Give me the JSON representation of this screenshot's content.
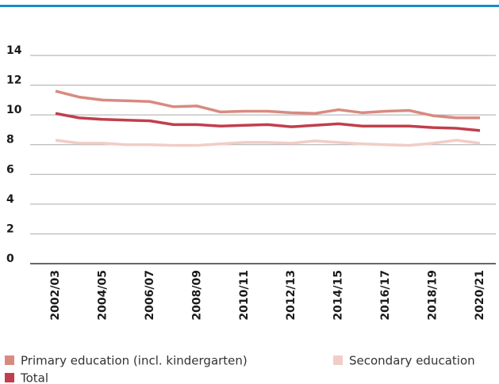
{
  "chart_data": {
    "type": "line",
    "categories": [
      "2002/03",
      null,
      "2004/05",
      null,
      "2006/07",
      null,
      "2008/09",
      null,
      "2010/11",
      null,
      "2012/13",
      null,
      "2014/15",
      null,
      "2016/17",
      null,
      "2018/19",
      null,
      "2020/21"
    ],
    "series": [
      {
        "name": "Primary education (incl. kindergarten)",
        "color": "#d98a80",
        "values": [
          11.6,
          11.2,
          11.0,
          10.95,
          10.9,
          10.55,
          10.6,
          10.2,
          10.25,
          10.25,
          10.15,
          10.1,
          10.35,
          10.15,
          10.25,
          10.3,
          9.95,
          9.8,
          9.8
        ]
      },
      {
        "name": "Secondary education",
        "color": "#f1cdc6",
        "values": [
          8.3,
          8.1,
          8.1,
          8.0,
          8.0,
          7.95,
          7.95,
          8.05,
          8.15,
          8.15,
          8.1,
          8.25,
          8.15,
          8.05,
          8.0,
          7.95,
          8.1,
          8.3,
          8.1
        ]
      },
      {
        "name": "Total",
        "color": "#c03f4d",
        "values": [
          10.1,
          9.8,
          9.7,
          9.65,
          9.6,
          9.35,
          9.35,
          9.25,
          9.3,
          9.35,
          9.2,
          9.3,
          9.4,
          9.25,
          9.25,
          9.25,
          9.15,
          9.1,
          8.95
        ]
      }
    ],
    "ylim": [
      0,
      14
    ],
    "yticks": [
      0,
      2,
      4,
      6,
      8,
      10,
      12,
      14
    ],
    "grid": true
  }
}
